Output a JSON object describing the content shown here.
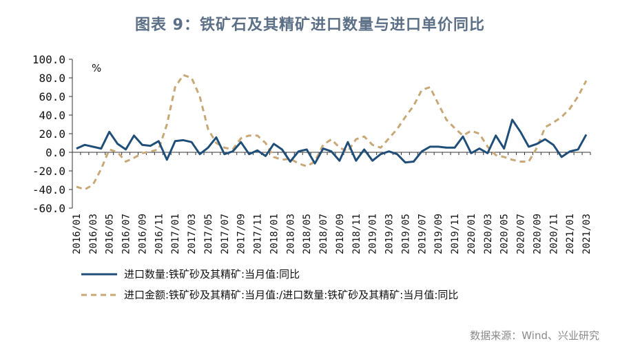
{
  "title": "图表 9：铁矿石及其精矿进口数量与进口单价同比",
  "source": "数据来源：Wind、兴业研究",
  "chart_data": {
    "type": "line",
    "ylabel": "%",
    "ylim": [
      -60,
      100
    ],
    "yticks": [
      "100.0",
      "80.0",
      "60.0",
      "40.0",
      "20.0",
      "0.0",
      "-20.0",
      "-40.0",
      "-60.0"
    ],
    "ytick_values": [
      100,
      80,
      60,
      40,
      20,
      0,
      -20,
      -40,
      -60
    ],
    "x": [
      "2016/01",
      "2016/02",
      "2016/03",
      "2016/04",
      "2016/05",
      "2016/06",
      "2016/07",
      "2016/08",
      "2016/09",
      "2016/10",
      "2016/11",
      "2016/12",
      "2017/01",
      "2017/02",
      "2017/03",
      "2017/04",
      "2017/05",
      "2017/06",
      "2017/07",
      "2017/08",
      "2017/09",
      "2017/10",
      "2017/11",
      "2017/12",
      "2018/01",
      "2018/02",
      "2018/03",
      "2018/04",
      "2018/05",
      "2018/06",
      "2018/07",
      "2018/08",
      "2018/09",
      "2018/10",
      "2018/11",
      "2018/12",
      "2019/01",
      "2019/02",
      "2019/03",
      "2019/04",
      "2019/05",
      "2019/06",
      "2019/07",
      "2019/08",
      "2019/09",
      "2019/10",
      "2019/11",
      "2019/12",
      "2020/01",
      "2020/02",
      "2020/03",
      "2020/04",
      "2020/05",
      "2020/06",
      "2020/07",
      "2020/08",
      "2020/09",
      "2020/10",
      "2020/11",
      "2020/12",
      "2021/01",
      "2021/02",
      "2021/03"
    ],
    "xtick_labels": [
      "2016/01",
      "2016/03",
      "2016/05",
      "2016/07",
      "2016/09",
      "2016/11",
      "2017/01",
      "2017/03",
      "2017/05",
      "2017/07",
      "2017/09",
      "2017/11",
      "2018/01",
      "2018/03",
      "2018/05",
      "2018/07",
      "2018/09",
      "2018/11",
      "2019/01",
      "2019/03",
      "2019/05",
      "2019/07",
      "2019/09",
      "2019/11",
      "2020/01",
      "2020/03",
      "2020/05",
      "2020/07",
      "2020/09",
      "2020/11",
      "2021/01",
      "2021/03"
    ],
    "series": [
      {
        "name": "进口数量:铁矿砂及其精矿:当月值:同比",
        "color": "#1f4e79",
        "dash": "solid",
        "values": [
          4,
          8,
          6,
          4,
          22,
          9,
          3,
          18,
          8,
          7,
          12,
          -8,
          12,
          13,
          11,
          -2,
          5,
          16,
          -2,
          1,
          11,
          -2,
          2,
          -4,
          9,
          3,
          -10,
          1,
          3,
          -12,
          4,
          1,
          -9,
          11,
          -9,
          3,
          -9,
          -2,
          1,
          -2,
          -11,
          -10,
          1,
          6,
          6,
          5,
          5,
          17,
          -1,
          4,
          -1,
          18,
          4,
          35,
          22,
          6,
          9,
          14,
          8,
          -5,
          1,
          3,
          19
        ]
      },
      {
        "name": "进口金额:铁矿砂及其精矿:当月值:/进口数量:铁矿砂及其精矿:当月值:同比",
        "color": "#c9a877",
        "dash": "dashed",
        "values": [
          -37,
          -40,
          -35,
          -18,
          3,
          0,
          -10,
          -6,
          -1,
          1,
          3,
          30,
          70,
          83,
          80,
          60,
          25,
          10,
          5,
          3,
          15,
          18,
          18,
          10,
          -5,
          -8,
          -7,
          -12,
          -15,
          -10,
          8,
          14,
          5,
          1,
          14,
          17,
          8,
          5,
          15,
          25,
          38,
          50,
          67,
          70,
          52,
          35,
          26,
          18,
          23,
          20,
          6,
          -3,
          -5,
          -8,
          -10,
          -10,
          5,
          27,
          32,
          38,
          47,
          60,
          77
        ]
      }
    ]
  }
}
